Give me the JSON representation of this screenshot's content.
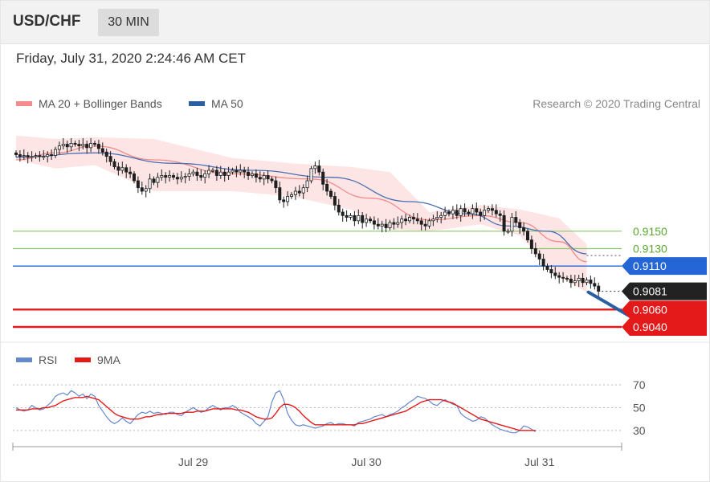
{
  "header": {
    "symbol": "USD/CHF",
    "timeframe": "30 MIN"
  },
  "datetime": "Friday, July 31, 2020 2:24:46 AM CET",
  "credit": "Research © 2020 Trading Central",
  "colors": {
    "candle": "#1f1f1f",
    "ma20_bollinger": "#f28b8b",
    "bollinger_band": "#fde0e0",
    "ma50": "#4a6fb0",
    "support": "#e41a1a",
    "resistance_green": "#8cc86e",
    "pivot_blue": "#2466d6",
    "current_price": "#222222",
    "rsi": "#6688cc",
    "rsi_ma": "#e41a1a",
    "forecast_arrow": "#2a5fa3"
  },
  "chart_data": [
    {
      "type": "candlestick",
      "name": "price",
      "legend": [
        {
          "label": "MA 20 + Bollinger Bands",
          "color": "#f28b8b"
        },
        {
          "label": "MA 50",
          "color": "#2a5fa3"
        }
      ],
      "x_ticks": [
        "Jul 29",
        "Jul 30",
        "Jul 31"
      ],
      "x_tick_index": [
        45,
        89,
        133
      ],
      "ylim": [
        0.9028,
        0.9268
      ],
      "close": [
        0.9238,
        0.9236,
        0.9237,
        0.9235,
        0.9236,
        0.9237,
        0.9236,
        0.9236,
        0.9238,
        0.9237,
        0.9244,
        0.9248,
        0.925,
        0.9247,
        0.9251,
        0.925,
        0.9248,
        0.925,
        0.9246,
        0.9251,
        0.925,
        0.9245,
        0.9241,
        0.9236,
        0.923,
        0.9224,
        0.922,
        0.9223,
        0.9218,
        0.9216,
        0.9208,
        0.92,
        0.9196,
        0.9199,
        0.921,
        0.9206,
        0.9212,
        0.9214,
        0.9212,
        0.9214,
        0.9212,
        0.921,
        0.9212,
        0.9213,
        0.9216,
        0.9218,
        0.9214,
        0.9212,
        0.9216,
        0.922,
        0.922,
        0.9214,
        0.9218,
        0.9214,
        0.9218,
        0.922,
        0.9218,
        0.922,
        0.9218,
        0.9214,
        0.9216,
        0.9212,
        0.921,
        0.9214,
        0.921,
        0.9208,
        0.92,
        0.9186,
        0.9184,
        0.919,
        0.9192,
        0.9196,
        0.9194,
        0.92,
        0.9208,
        0.9222,
        0.9225,
        0.9218,
        0.9204,
        0.9196,
        0.919,
        0.918,
        0.9172,
        0.9168,
        0.9166,
        0.9168,
        0.9162,
        0.9168,
        0.916,
        0.9164,
        0.9162,
        0.9158,
        0.9156,
        0.9158,
        0.9154,
        0.916,
        0.9158,
        0.916,
        0.9164,
        0.9162,
        0.9166,
        0.9164,
        0.9162,
        0.9158,
        0.9156,
        0.9162,
        0.9164,
        0.9166,
        0.9168,
        0.9172,
        0.917,
        0.9174,
        0.9168,
        0.9176,
        0.9172,
        0.917,
        0.9176,
        0.9172,
        0.9168,
        0.9174,
        0.9176,
        0.9174,
        0.917,
        0.9168,
        0.915,
        0.915,
        0.9166,
        0.916,
        0.9154,
        0.915,
        0.914,
        0.913,
        0.9124,
        0.9118,
        0.911,
        0.9106,
        0.9102,
        0.9099,
        0.9097,
        0.9096,
        0.9095,
        0.9091,
        0.9093,
        0.9096,
        0.9091,
        0.9094,
        0.909,
        0.9087,
        0.9081
      ],
      "ma20_bollinger": {
        "x_range": [
          0,
          145
        ],
        "points": [
          [
            0,
            0.9232
          ],
          [
            10,
            0.924
          ],
          [
            20,
            0.9248
          ],
          [
            35,
            0.9232
          ],
          [
            55,
            0.9216
          ],
          [
            75,
            0.921
          ],
          [
            90,
            0.9188
          ],
          [
            105,
            0.9163
          ],
          [
            118,
            0.9168
          ],
          [
            128,
            0.916
          ],
          [
            138,
            0.9138
          ],
          [
            145,
            0.9115
          ]
        ],
        "upper": [
          [
            0,
            0.926
          ],
          [
            10,
            0.9256
          ],
          [
            20,
            0.9258
          ],
          [
            35,
            0.9256
          ],
          [
            55,
            0.9234
          ],
          [
            70,
            0.9228
          ],
          [
            85,
            0.9224
          ],
          [
            95,
            0.9218
          ],
          [
            105,
            0.9172
          ],
          [
            118,
            0.918
          ],
          [
            128,
            0.9175
          ],
          [
            138,
            0.9165
          ],
          [
            145,
            0.9135
          ]
        ],
        "lower": [
          [
            0,
            0.9232
          ],
          [
            10,
            0.9222
          ],
          [
            20,
            0.9226
          ],
          [
            35,
            0.9196
          ],
          [
            55,
            0.9196
          ],
          [
            70,
            0.919
          ],
          [
            85,
            0.9175
          ],
          [
            95,
            0.9152
          ],
          [
            105,
            0.915
          ],
          [
            118,
            0.9158
          ],
          [
            128,
            0.9145
          ],
          [
            138,
            0.9098
          ],
          [
            145,
            0.908
          ]
        ]
      },
      "ma50": {
        "points": [
          [
            0,
            0.9235
          ],
          [
            20,
            0.924
          ],
          [
            40,
            0.9228
          ],
          [
            60,
            0.922
          ],
          [
            80,
            0.9212
          ],
          [
            100,
            0.9184
          ],
          [
            115,
            0.917
          ],
          [
            125,
            0.9156
          ],
          [
            135,
            0.915
          ],
          [
            145,
            0.9124
          ]
        ]
      },
      "levels": [
        {
          "value": 0.915,
          "label": "0.9150",
          "kind": "resistance"
        },
        {
          "value": 0.913,
          "label": "0.9130",
          "kind": "resistance"
        },
        {
          "value": 0.911,
          "label": "0.9110",
          "kind": "pivot"
        },
        {
          "value": 0.9081,
          "label": "0.9081",
          "kind": "current"
        },
        {
          "value": 0.906,
          "label": "0.9060",
          "kind": "support"
        },
        {
          "value": 0.904,
          "label": "0.9040",
          "kind": "support"
        }
      ],
      "forecast_arrow": {
        "from": [
          145,
          0.908
        ],
        "to": [
          157,
          0.9045
        ]
      }
    },
    {
      "type": "line",
      "name": "rsi",
      "legend": [
        {
          "label": "RSI",
          "color": "#6688cc"
        },
        {
          "label": "9MA",
          "color": "#e41a1a"
        }
      ],
      "y_ticks": [
        30,
        50,
        70
      ],
      "ylim": [
        20,
        80
      ],
      "rsi": [
        50,
        48,
        47,
        48,
        52,
        50,
        48,
        49,
        52,
        55,
        60,
        62,
        63,
        61,
        65,
        63,
        60,
        62,
        58,
        62,
        60,
        52,
        47,
        42,
        38,
        36,
        38,
        41,
        38,
        36,
        40,
        44,
        46,
        45,
        47,
        45,
        46,
        45,
        44,
        46,
        46,
        44,
        43,
        46,
        48,
        50,
        48,
        46,
        47,
        50,
        52,
        50,
        48,
        50,
        50,
        52,
        50,
        46,
        44,
        42,
        40,
        36,
        34,
        38,
        42,
        55,
        63,
        65,
        57,
        45,
        39,
        35,
        34,
        35,
        34,
        33,
        32,
        33,
        34,
        36,
        37,
        35,
        36,
        36,
        35,
        35,
        34,
        37,
        38,
        39,
        40,
        42,
        43,
        44,
        42,
        44,
        45,
        47,
        50,
        52,
        55,
        57,
        60,
        59,
        58,
        56,
        53,
        52,
        55,
        57,
        55,
        53,
        52,
        45,
        42,
        40,
        38,
        39,
        42,
        41,
        38,
        35,
        33,
        31,
        30,
        29,
        28,
        28,
        30,
        34,
        33,
        31,
        29
      ],
      "rsi_ma": [
        48,
        48,
        48,
        48,
        49,
        49,
        49,
        50,
        50,
        51,
        52,
        54,
        56,
        57,
        58,
        59,
        59,
        59,
        60,
        59,
        58,
        57,
        54,
        51,
        48,
        45,
        43,
        42,
        41,
        40,
        40,
        40,
        41,
        42,
        42,
        43,
        44,
        44,
        45,
        45,
        45,
        45,
        45,
        46,
        46,
        46,
        47,
        47,
        47,
        48,
        49,
        49,
        49,
        49,
        49,
        49,
        48,
        48,
        47,
        46,
        44,
        42,
        41,
        40,
        40,
        41,
        45,
        50,
        53,
        53,
        52,
        50,
        47,
        43,
        40,
        37,
        35,
        35,
        35,
        35,
        35,
        35,
        35,
        35,
        35,
        35,
        35,
        36,
        36,
        37,
        38,
        39,
        40,
        41,
        42,
        43,
        44,
        45,
        46,
        47,
        49,
        51,
        53,
        55,
        56,
        57,
        57,
        57,
        57,
        56,
        55,
        54,
        52,
        50,
        48,
        46,
        44,
        42,
        40,
        39,
        38,
        37,
        36,
        35,
        34,
        33,
        32,
        31,
        30,
        30,
        30,
        30,
        30
      ]
    }
  ]
}
